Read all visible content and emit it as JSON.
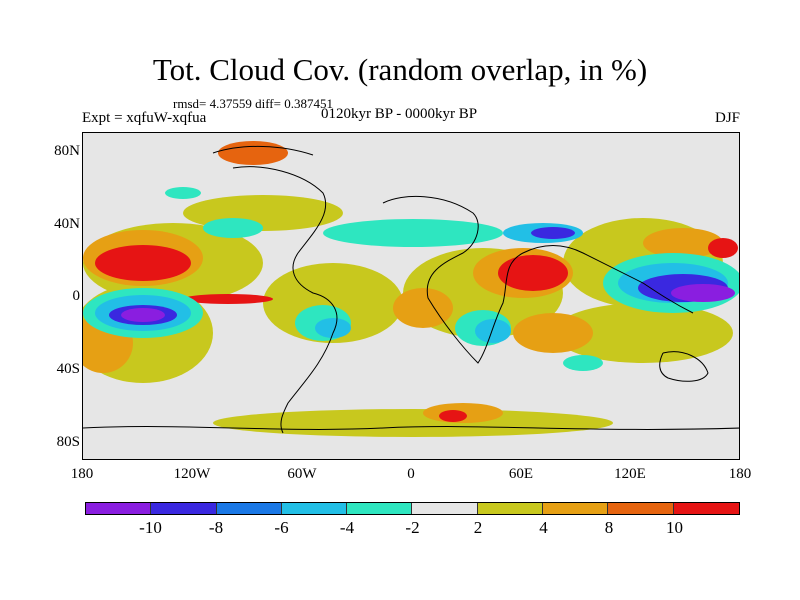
{
  "title": "Tot. Cloud Cov. (random overlap, in %)",
  "stats": "rmsd= 4.37559 diff= 0.387451",
  "experiment": "Expt = xqfuW-xqfua",
  "period": "0120kyr BP - 0000kyr BP",
  "season": "DJF",
  "y_axis_labels": [
    "80N",
    "40N",
    "0",
    "40S",
    "80S"
  ],
  "x_axis_labels": [
    "180",
    "120W",
    "60W",
    "0",
    "60E",
    "120E",
    "180"
  ],
  "colorbar": {
    "labels": [
      "-10",
      "-8",
      "-6",
      "-4",
      "-2",
      "2",
      "4",
      "8",
      "10"
    ],
    "colors": [
      "#8a1ee0",
      "#3a28e0",
      "#1a78e6",
      "#22bfe6",
      "#2ee6c0",
      "#e6e6e6",
      "#c8c81e",
      "#e6a014",
      "#e6640f",
      "#e61414"
    ]
  }
}
